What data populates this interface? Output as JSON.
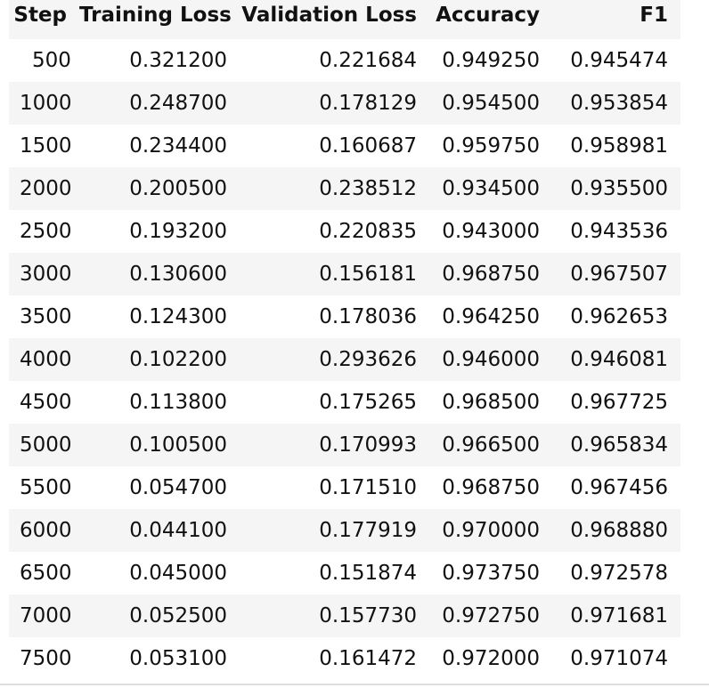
{
  "table": {
    "headers": [
      "Step",
      "Training Loss",
      "Validation Loss",
      "Accuracy",
      "F1"
    ],
    "rows": [
      [
        "500",
        "0.321200",
        "0.221684",
        "0.949250",
        "0.945474"
      ],
      [
        "1000",
        "0.248700",
        "0.178129",
        "0.954500",
        "0.953854"
      ],
      [
        "1500",
        "0.234400",
        "0.160687",
        "0.959750",
        "0.958981"
      ],
      [
        "2000",
        "0.200500",
        "0.238512",
        "0.934500",
        "0.935500"
      ],
      [
        "2500",
        "0.193200",
        "0.220835",
        "0.943000",
        "0.943536"
      ],
      [
        "3000",
        "0.130600",
        "0.156181",
        "0.968750",
        "0.967507"
      ],
      [
        "3500",
        "0.124300",
        "0.178036",
        "0.964250",
        "0.962653"
      ],
      [
        "4000",
        "0.102200",
        "0.293626",
        "0.946000",
        "0.946081"
      ],
      [
        "4500",
        "0.113800",
        "0.175265",
        "0.968500",
        "0.967725"
      ],
      [
        "5000",
        "0.100500",
        "0.170993",
        "0.966500",
        "0.965834"
      ],
      [
        "5500",
        "0.054700",
        "0.171510",
        "0.968750",
        "0.967456"
      ],
      [
        "6000",
        "0.044100",
        "0.177919",
        "0.970000",
        "0.968880"
      ],
      [
        "6500",
        "0.045000",
        "0.151874",
        "0.973750",
        "0.972578"
      ],
      [
        "7000",
        "0.052500",
        "0.157730",
        "0.972750",
        "0.971681"
      ],
      [
        "7500",
        "0.053100",
        "0.161472",
        "0.972000",
        "0.971074"
      ]
    ]
  }
}
